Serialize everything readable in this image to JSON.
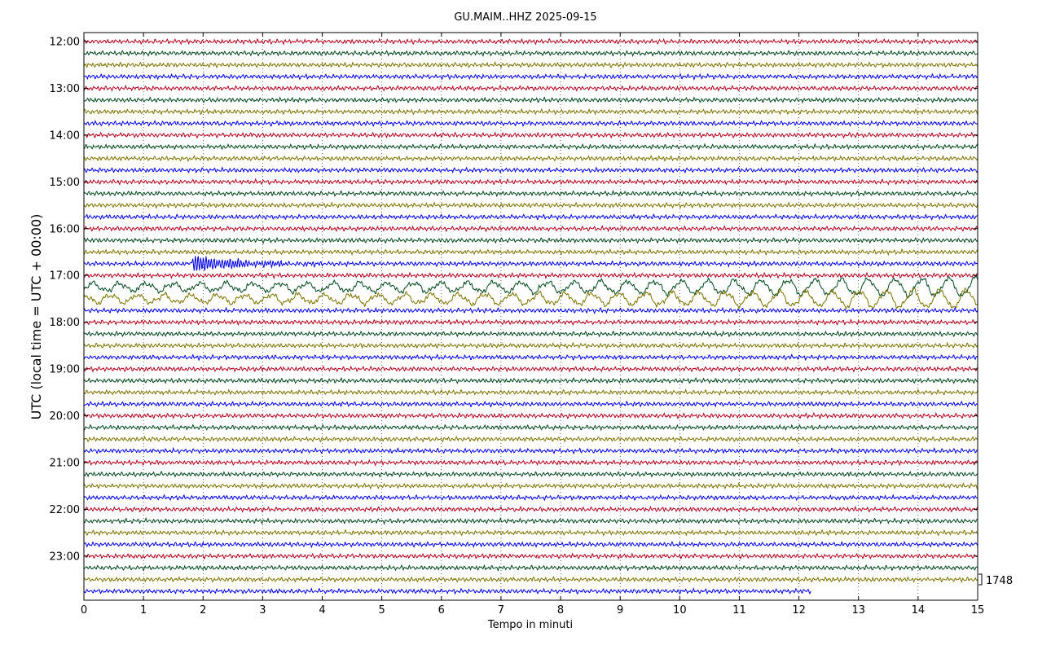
{
  "chart_data": {
    "type": "line",
    "title": "GU.MAIM..HHZ 2025-09-15",
    "xlabel": "Tempo in minuti",
    "ylabel": "UTC (local time = UTC + 00:00)",
    "xlim": [
      0,
      15
    ],
    "x_ticks": [
      "0",
      "1",
      "2",
      "3",
      "4",
      "5",
      "6",
      "7",
      "8",
      "9",
      "10",
      "11",
      "12",
      "13",
      "14",
      "15"
    ],
    "y_tick_labels": [
      "12:00",
      "13:00",
      "14:00",
      "15:00",
      "16:00",
      "17:00",
      "18:00",
      "19:00",
      "20:00",
      "21:00",
      "22:00",
      "23:00"
    ],
    "trace_interval_minutes": 15,
    "trace_count": 48,
    "first_trace_start": "12:00",
    "last_trace_end_minute": 12.2,
    "series_colors": [
      "#b0001c",
      "#00471c",
      "#7d7200",
      "#0000e6"
    ],
    "scale_label": "1748",
    "vertical_grid": "dotted",
    "events": [
      {
        "trace_start": "16:45",
        "start_minute": 1.8,
        "end_minute": 4.5,
        "type": "local_spike"
      },
      {
        "trace_start": "17:15",
        "start_minute": 0,
        "end_minute": 15,
        "type": "large_oscillation"
      },
      {
        "trace_start": "17:30",
        "start_minute": 0,
        "end_minute": 15,
        "type": "large_oscillation"
      }
    ]
  }
}
